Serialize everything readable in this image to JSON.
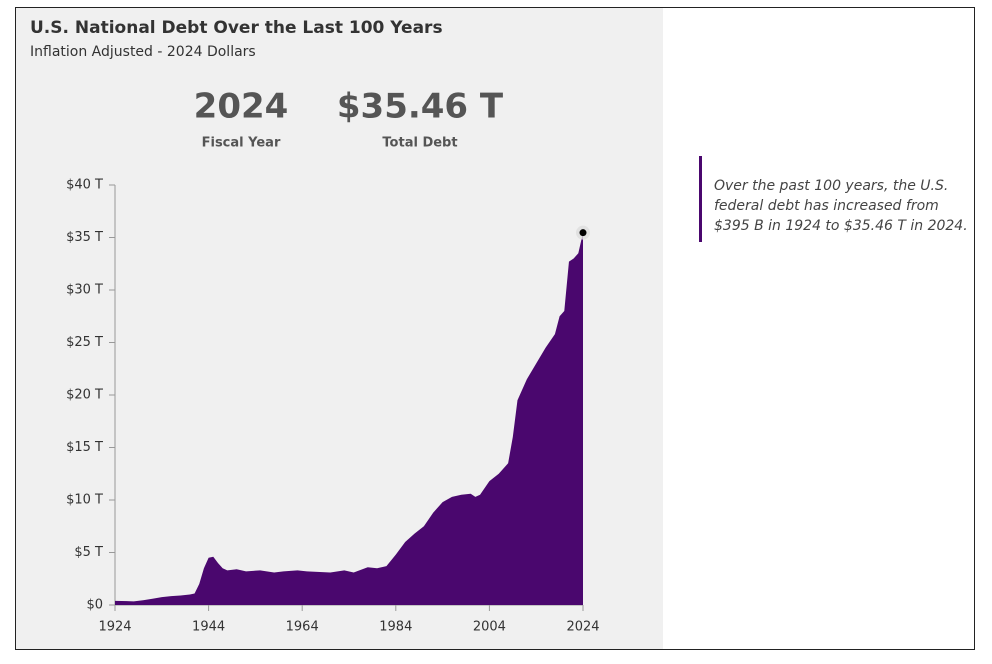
{
  "chart_data": {
    "type": "area",
    "title": "U.S. National Debt Over the Last 100 Years",
    "subtitle": "Inflation Adjusted - 2024 Dollars",
    "stats": [
      {
        "value": "2024",
        "label": "Fiscal Year"
      },
      {
        "value": "$35.46 T",
        "label": "Total Debt"
      }
    ],
    "annotation": "Over the past 100 years, the U.S. federal debt has increased from $395 B in 1924 to $35.46 T in 2024.",
    "color": "#4a076e",
    "x": [
      1924,
      1928,
      1930,
      1932,
      1934,
      1936,
      1938,
      1940,
      1941,
      1942,
      1943,
      1944,
      1945,
      1946,
      1947,
      1948,
      1950,
      1952,
      1955,
      1958,
      1960,
      1963,
      1965,
      1970,
      1973,
      1975,
      1978,
      1980,
      1982,
      1984,
      1986,
      1988,
      1990,
      1992,
      1994,
      1996,
      1998,
      2000,
      2001,
      2002,
      2004,
      2006,
      2008,
      2009,
      2010,
      2012,
      2014,
      2016,
      2018,
      2019,
      2020,
      2021,
      2022,
      2023,
      2024
    ],
    "values": [
      0.395,
      0.35,
      0.45,
      0.6,
      0.75,
      0.85,
      0.9,
      1.0,
      1.1,
      2.0,
      3.5,
      4.5,
      4.6,
      4.0,
      3.5,
      3.3,
      3.4,
      3.2,
      3.3,
      3.1,
      3.2,
      3.3,
      3.2,
      3.1,
      3.3,
      3.1,
      3.6,
      3.5,
      3.7,
      4.8,
      6.0,
      6.8,
      7.5,
      8.8,
      9.8,
      10.3,
      10.5,
      10.6,
      10.3,
      10.5,
      11.8,
      12.5,
      13.5,
      16.0,
      19.5,
      21.5,
      23.0,
      24.5,
      25.8,
      27.5,
      28.0,
      32.7,
      33.0,
      33.5,
      35.46
    ],
    "xlim": [
      1924,
      2024
    ],
    "xticks": [
      1924,
      1944,
      1964,
      1984,
      2004,
      2024
    ],
    "ylim": [
      0,
      40
    ],
    "yticks": [
      {
        "value": 0,
        "label": "$0"
      },
      {
        "value": 5,
        "label": "$5 T"
      },
      {
        "value": 10,
        "label": "$10 T"
      },
      {
        "value": 15,
        "label": "$15 T"
      },
      {
        "value": 20,
        "label": "$20 T"
      },
      {
        "value": 25,
        "label": "$25 T"
      },
      {
        "value": 30,
        "label": "$30 T"
      },
      {
        "value": 35,
        "label": "$35 T"
      },
      {
        "value": 40,
        "label": "$40 T"
      }
    ]
  }
}
